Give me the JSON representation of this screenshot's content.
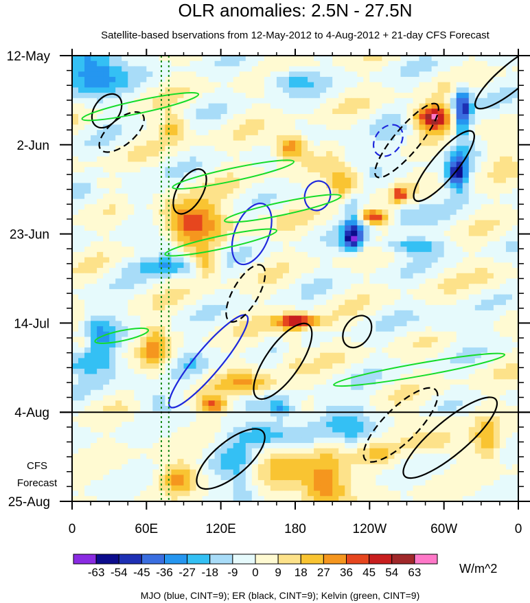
{
  "chart_data": {
    "type": "heatmap",
    "title": "OLR anomalies: 2.5N - 27.5N",
    "subtitle": "Satellite-based bservations from 12-May-2012 to 4-Aug-2012 + 21-day CFS Forecast",
    "x_tick_labels": [
      "0",
      "60E",
      "120E",
      "180",
      "120W",
      "60W",
      "0"
    ],
    "x_ticks_deg": [
      0,
      60,
      120,
      180,
      240,
      300,
      360
    ],
    "xlim_deg": [
      0,
      360
    ],
    "y_tick_labels": [
      "12-May",
      "2-Jun",
      "23-Jun",
      "14-Jul",
      "4-Aug",
      "25-Aug"
    ],
    "y_ticks_day": [
      0,
      21,
      42,
      63,
      84,
      105
    ],
    "ylim_day": [
      0,
      105
    ],
    "observation_end_label": "4-Aug",
    "observation_end_day": 84,
    "forecast_label_line1": "CFS",
    "forecast_label_line2": "Forecast",
    "reference_lines_deg": [
      72,
      78
    ],
    "colorbar": {
      "levels": [
        -63,
        -54,
        -45,
        -36,
        -27,
        -18,
        -9,
        0,
        9,
        18,
        27,
        36,
        45,
        54,
        63
      ],
      "level_labels": [
        "-63",
        "-54",
        "-45",
        "-36",
        "-27",
        "-18",
        "-9",
        "0",
        "9",
        "18",
        "27",
        "36",
        "45",
        "54",
        "63"
      ],
      "colors": [
        "#8a2be2",
        "#0c0c8c",
        "#1e30b4",
        "#3a6ee0",
        "#2596f0",
        "#34c0f4",
        "#a8dcf8",
        "#e6fafc",
        "#fffad2",
        "#fde28a",
        "#f9c432",
        "#f5961e",
        "#e6461e",
        "#c81e1e",
        "#a0282a",
        "#ff78c8"
      ],
      "units": "W/m^2"
    },
    "footnote": "MJO (blue, CINT=9); ER (black, CINT=9); Kelvin (green, CINT=9)",
    "contour_colors": {
      "mjo": "#1e28dc",
      "er": "#000000",
      "kelvin": "#14dc28"
    }
  }
}
